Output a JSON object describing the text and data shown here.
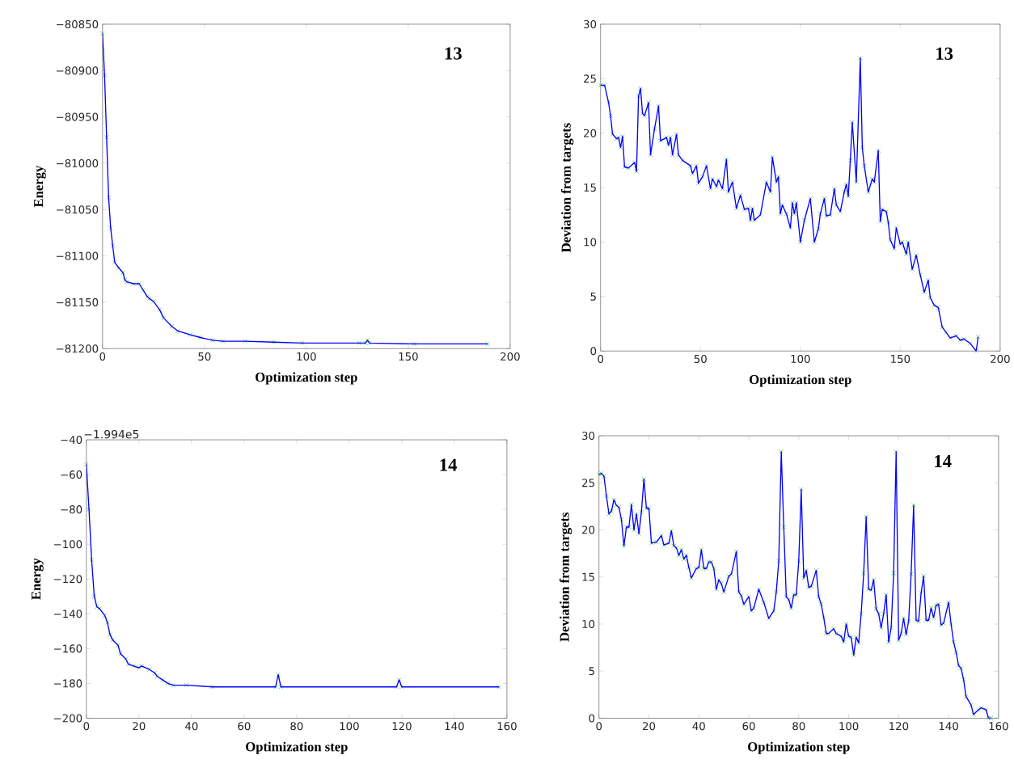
{
  "chart_data": [
    {
      "type": "line",
      "xlabel": "Optimization step",
      "ylabel": "Energy",
      "xlim": [
        0,
        200
      ],
      "ylim": [
        -81200,
        -80850
      ],
      "xticks": [
        0,
        50,
        100,
        150,
        200
      ],
      "yticks": [
        {
          "value": -81200,
          "label": "−81200"
        },
        {
          "value": -81150,
          "label": "−81150"
        },
        {
          "value": -81100,
          "label": "−81100"
        },
        {
          "value": -81050,
          "label": "−81050"
        },
        {
          "value": -81000,
          "label": "−81000"
        },
        {
          "value": -80950,
          "label": "−80950"
        },
        {
          "value": -80900,
          "label": "−80900"
        },
        {
          "value": -80850,
          "label": "−80850"
        }
      ],
      "marker": "cross",
      "annotations": [
        "13"
      ],
      "series": [
        {
          "color": "#0000ff",
          "x": [
            0,
            1,
            2,
            3,
            4,
            5,
            6,
            8,
            10,
            11,
            12,
            15,
            18,
            20,
            22,
            23,
            25,
            28,
            30,
            34,
            37,
            43,
            48,
            54,
            59,
            70,
            84,
            98,
            126,
            129,
            130,
            131,
            153,
            189
          ],
          "values": [
            -80860,
            -80905,
            -80972,
            -81037,
            -81070,
            -81089,
            -81107,
            -81113,
            -81118,
            -81126,
            -81128,
            -81130,
            -81130,
            -81137,
            -81144,
            -81146,
            -81149,
            -81158,
            -81167,
            -81176,
            -81181,
            -81185,
            -81188,
            -81191,
            -81192,
            -81192,
            -81193,
            -81194,
            -81194,
            -81194,
            -81191,
            -81194,
            -81195,
            -81195
          ]
        }
      ]
    },
    {
      "type": "line",
      "xlabel": "Optimization step",
      "ylabel": "Deviation from targets",
      "xlim": [
        0,
        200
      ],
      "ylim": [
        0,
        30
      ],
      "xticks": [
        0,
        50,
        100,
        150,
        200
      ],
      "yticks": [
        0,
        5,
        10,
        15,
        20,
        25,
        30
      ],
      "marker": "cross",
      "annotations": [
        "13"
      ],
      "series": [
        {
          "color": "#0000ff",
          "x": [
            0,
            2,
            4,
            5,
            6,
            8,
            9,
            10,
            11,
            12,
            14,
            17,
            18,
            19,
            20,
            21,
            22,
            24,
            25,
            27,
            29,
            30,
            33,
            34,
            35,
            36,
            38,
            39,
            41,
            45,
            46,
            48,
            49,
            51,
            53,
            55,
            56,
            58,
            59,
            61,
            63,
            64,
            66,
            68,
            70,
            72,
            74,
            75,
            76,
            77,
            80,
            83,
            85,
            86,
            88,
            89,
            90,
            91,
            93,
            95,
            96,
            97,
            98,
            100,
            102,
            105,
            107,
            109,
            110,
            112,
            113,
            115,
            117,
            118,
            120,
            122,
            123,
            124,
            125,
            126,
            128,
            130,
            131,
            132,
            134,
            136,
            137,
            139,
            140,
            141,
            143,
            144,
            145,
            147,
            148,
            150,
            151,
            153,
            154,
            156,
            158,
            160,
            162,
            164,
            165,
            167,
            169,
            171,
            173,
            175,
            178,
            180,
            182,
            185,
            188,
            189
          ],
          "values": [
            24.4,
            24.4,
            22.8,
            21.6,
            19.9,
            19.5,
            19.6,
            18.7,
            19.7,
            16.9,
            16.8,
            17.3,
            16.5,
            23.4,
            24.1,
            21.8,
            21.6,
            22.8,
            18.0,
            20.4,
            22.5,
            19.3,
            19.6,
            18.9,
            19.6,
            18.0,
            19.9,
            18.0,
            17.5,
            17.0,
            16.3,
            17.0,
            15.4,
            16.0,
            17.0,
            14.9,
            15.8,
            15.1,
            15.7,
            14.9,
            17.6,
            14.6,
            15.5,
            13.1,
            14.3,
            13.0,
            13.1,
            12.0,
            13.1,
            12.0,
            12.5,
            15.5,
            14.6,
            17.8,
            15.5,
            16.0,
            12.6,
            13.4,
            12.6,
            11.3,
            13.6,
            12.6,
            13.6,
            10.0,
            12.0,
            14.0,
            10.0,
            11.2,
            12.6,
            14.0,
            12.4,
            12.5,
            14.9,
            13.4,
            12.8,
            14.6,
            15.3,
            14.2,
            17.5,
            21.0,
            15.5,
            26.9,
            18.7,
            17.0,
            14.6,
            15.8,
            15.5,
            18.4,
            11.9,
            13.0,
            12.8,
            11.8,
            10.2,
            9.4,
            11.3,
            9.8,
            10.0,
            8.9,
            10.0,
            7.5,
            8.8,
            7.0,
            5.4,
            6.5,
            4.9,
            4.2,
            4.0,
            2.2,
            1.7,
            1.2,
            1.4,
            1.0,
            1.1,
            0.7,
            0.0,
            1.3
          ]
        }
      ]
    },
    {
      "type": "line",
      "xlabel": "Optimization step",
      "ylabel": "Energy",
      "xlim": [
        0,
        160
      ],
      "ylim": [
        -200,
        -40
      ],
      "xticks": [
        0,
        20,
        40,
        60,
        80,
        100,
        120,
        140,
        160
      ],
      "yticks": [
        {
          "value": -200,
          "label": "−200"
        },
        {
          "value": -180,
          "label": "−180"
        },
        {
          "value": -160,
          "label": "−160"
        },
        {
          "value": -140,
          "label": "−140"
        },
        {
          "value": -120,
          "label": "−120"
        },
        {
          "value": -100,
          "label": "−100"
        },
        {
          "value": -80,
          "label": "−80"
        },
        {
          "value": -60,
          "label": "−60"
        },
        {
          "value": -40,
          "label": "−40"
        }
      ],
      "marker": "cross",
      "annotations": [
        "14",
        "−1.994e5"
      ],
      "series": [
        {
          "color": "#0000ff",
          "x": [
            0,
            1,
            2,
            3,
            4,
            5,
            7,
            8,
            9,
            10,
            12,
            13,
            15,
            16,
            18,
            20,
            21,
            24,
            26,
            27,
            29,
            31,
            33,
            38,
            48,
            72,
            73,
            74,
            118,
            119,
            120,
            157
          ],
          "values": [
            -54,
            -80,
            -109,
            -130,
            -136,
            -137,
            -141,
            -145,
            -152,
            -155,
            -158,
            -163,
            -166,
            -169,
            -170,
            -171,
            -170,
            -172,
            -174,
            -176,
            -178,
            -180,
            -181,
            -181,
            -182,
            -182,
            -175,
            -182,
            -182,
            -178,
            -182,
            -182
          ]
        }
      ]
    },
    {
      "type": "line",
      "xlabel": "Optimization step",
      "ylabel": "Deviation from targets",
      "xlim": [
        0,
        160
      ],
      "ylim": [
        0,
        30
      ],
      "xticks": [
        0,
        20,
        40,
        60,
        80,
        100,
        120,
        140,
        160
      ],
      "yticks": [
        0,
        5,
        10,
        15,
        20,
        25,
        30
      ],
      "marker": "cross",
      "annotations": [
        "14"
      ],
      "series": [
        {
          "color": "#0000ff",
          "x": [
            0,
            1,
            2,
            3,
            4,
            5,
            6,
            7,
            8,
            9,
            10,
            11,
            12,
            13,
            14,
            15,
            16,
            17,
            18,
            19,
            20,
            21,
            23,
            25,
            26,
            28,
            29,
            30,
            31,
            32,
            33,
            34,
            35,
            36,
            37,
            39,
            40,
            41,
            42,
            43,
            44,
            45,
            46,
            47,
            48,
            49,
            50,
            52,
            53,
            55,
            56,
            57,
            58,
            60,
            61,
            62,
            64,
            66,
            68,
            70,
            71,
            72,
            73,
            74,
            75,
            76,
            77,
            78,
            79,
            80,
            81,
            82,
            83,
            84,
            85,
            87,
            88,
            89,
            90,
            91,
            92,
            94,
            95,
            97,
            98,
            99,
            100,
            101,
            102,
            103,
            104,
            105,
            106,
            107,
            108,
            109,
            110,
            111,
            112,
            113,
            114,
            115,
            116,
            117,
            118,
            119,
            120,
            121,
            122,
            123,
            124,
            125,
            126,
            127,
            128,
            129,
            130,
            131,
            132,
            133,
            134,
            135,
            136,
            137,
            138,
            140,
            141,
            142,
            143,
            144,
            145,
            146,
            147,
            149,
            150,
            152,
            153,
            155,
            156,
            157
          ],
          "values": [
            25.9,
            26.0,
            25.7,
            23.6,
            21.7,
            22.0,
            23.2,
            22.6,
            22.4,
            21.1,
            18.3,
            20.3,
            20.3,
            22.7,
            20.0,
            21.7,
            19.6,
            21.9,
            25.4,
            22.3,
            22.3,
            18.6,
            18.7,
            19.4,
            18.4,
            18.6,
            19.9,
            18.3,
            18.1,
            17.3,
            17.9,
            16.9,
            17.3,
            16.0,
            14.9,
            15.9,
            16.0,
            17.9,
            15.9,
            15.9,
            16.6,
            16.6,
            15.9,
            13.7,
            14.7,
            14.3,
            13.4,
            15.1,
            15.3,
            17.7,
            13.4,
            13.0,
            12.1,
            12.9,
            11.4,
            11.7,
            13.7,
            12.3,
            10.6,
            11.4,
            13.4,
            16.7,
            28.3,
            20.3,
            12.9,
            12.6,
            11.7,
            13.1,
            13.1,
            16.7,
            24.3,
            14.9,
            15.7,
            13.9,
            14.0,
            15.7,
            12.9,
            12.1,
            10.7,
            9.0,
            9.0,
            9.5,
            9.0,
            8.7,
            8.1,
            10.0,
            8.7,
            8.6,
            6.7,
            8.6,
            8.0,
            11.1,
            15.4,
            21.4,
            13.7,
            13.6,
            14.7,
            11.6,
            11.1,
            9.6,
            11.1,
            13.1,
            8.1,
            9.6,
            15.4,
            28.3,
            8.3,
            9.0,
            10.6,
            8.9,
            10.3,
            15.3,
            22.6,
            10.4,
            10.3,
            13.3,
            15.1,
            10.4,
            10.4,
            11.7,
            10.7,
            12.0,
            12.1,
            9.9,
            10.1,
            12.3,
            10.0,
            8.1,
            7.0,
            5.6,
            5.3,
            4.1,
            2.3,
            1.4,
            0.4,
            0.9,
            1.1,
            0.9,
            0.0,
            0.0
          ]
        }
      ]
    }
  ]
}
